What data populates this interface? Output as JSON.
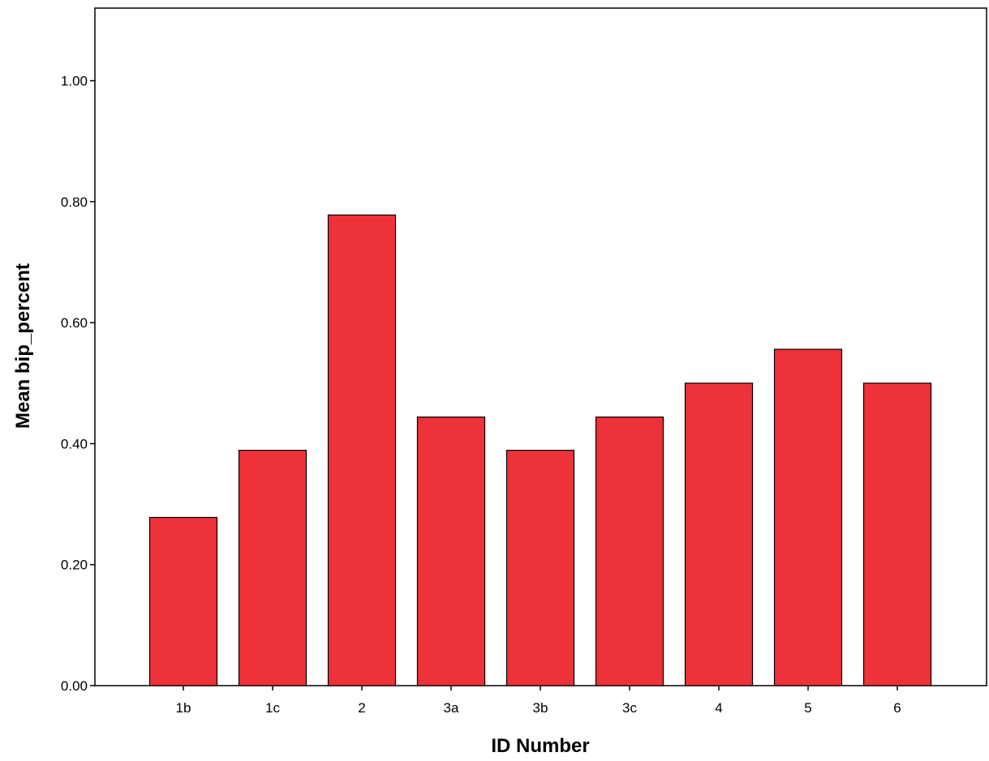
{
  "chart_data": {
    "type": "bar",
    "title": "",
    "xlabel": "ID Number",
    "ylabel": "Mean bip_percent",
    "categories": [
      "1b",
      "1c",
      "2",
      "3a",
      "3b",
      "3c",
      "4",
      "5",
      "6"
    ],
    "values": [
      0.278,
      0.389,
      0.778,
      0.444,
      0.389,
      0.444,
      0.5,
      0.556,
      0.5
    ],
    "ylim": [
      0,
      1.12
    ],
    "yticks": [
      0.0,
      0.2,
      0.4,
      0.6,
      0.8,
      1.0
    ],
    "ytick_labels": [
      "0.00",
      "0.20",
      "0.40",
      "0.60",
      "0.80",
      "1.00"
    ],
    "grid": false,
    "legend": "none",
    "bar_color": "#ee3239",
    "bar_edge_color": "#000000"
  }
}
